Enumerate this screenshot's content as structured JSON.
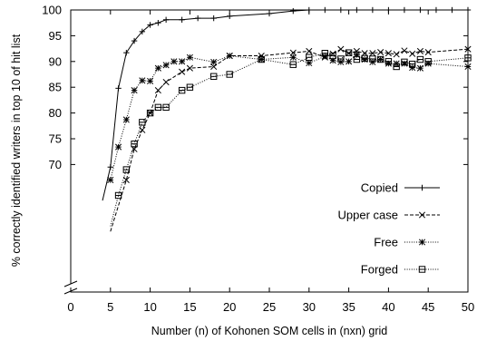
{
  "chart_data": {
    "type": "line",
    "title": "",
    "xlabel": "Number (n) of Kohonen SOM cells in (nxn) grid",
    "ylabel": "% correctly identified writers in top 10 of hit list",
    "xlim": [
      0,
      50
    ],
    "ylim": [
      65,
      100
    ],
    "y_axis_break": true,
    "x_ticks": [
      0,
      5,
      10,
      15,
      20,
      25,
      30,
      35,
      40,
      45,
      50
    ],
    "y_ticks": [
      70,
      75,
      80,
      85,
      90,
      95,
      100
    ],
    "grid": false,
    "legend_position": "bottom-right",
    "series": [
      {
        "name": "Copied",
        "line": "solid",
        "marker": "plus",
        "x": [
          4,
          5,
          6,
          7,
          8,
          9,
          10,
          11,
          12,
          14,
          16,
          18,
          20,
          25,
          28,
          30,
          32,
          34,
          36,
          38,
          40,
          42,
          44,
          46,
          48,
          50
        ],
        "y": [
          63,
          69.5,
          84.8,
          91.7,
          94,
          95.8,
          97.1,
          97.5,
          98.1,
          98.1,
          98.4,
          98.4,
          98.8,
          99.3,
          99.8,
          100,
          100,
          100,
          100,
          100,
          100,
          100,
          100,
          100,
          100,
          100
        ]
      },
      {
        "name": "Upper case",
        "line": "dashed",
        "marker": "x",
        "x": [
          5,
          6,
          7,
          8,
          9,
          10,
          11,
          12,
          14,
          15,
          18,
          20,
          24,
          28,
          30,
          32,
          33,
          34,
          35,
          36,
          37,
          38,
          39,
          40,
          41,
          42,
          43,
          44,
          45,
          50
        ],
        "y": [
          57,
          62,
          67,
          73,
          76.7,
          80,
          84.4,
          86,
          88,
          88.7,
          89,
          91.1,
          91.1,
          91.7,
          92,
          90.8,
          91.5,
          92.4,
          91.6,
          92,
          91.6,
          91.6,
          91.8,
          91.6,
          91.4,
          92.1,
          91.5,
          92,
          91.8,
          92.4
        ]
      },
      {
        "name": "Free",
        "line": "dotted",
        "marker": "star",
        "x": [
          5,
          6,
          7,
          8,
          9,
          10,
          11,
          12,
          13,
          14,
          15,
          18,
          20,
          24,
          28,
          30,
          32,
          33,
          34,
          35,
          36,
          37,
          38,
          39,
          40,
          41,
          42,
          43,
          44,
          45,
          50
        ],
        "y": [
          67,
          73.4,
          78.7,
          84.4,
          86.3,
          86.2,
          88.7,
          89.3,
          90,
          90,
          90.8,
          89.9,
          91.1,
          90.4,
          90.8,
          89.7,
          91,
          90.2,
          89.9,
          90,
          91.3,
          90.4,
          89.9,
          90.4,
          89.6,
          89.6,
          89.6,
          88.8,
          88.7,
          89.6,
          89
        ]
      },
      {
        "name": "Forged",
        "line": "dotted",
        "marker": "box",
        "x": [
          5,
          6,
          7,
          8,
          9,
          10,
          11,
          12,
          14,
          15,
          18,
          20,
          24,
          28,
          30,
          32,
          33,
          34,
          35,
          36,
          37,
          38,
          39,
          40,
          41,
          42,
          43,
          44,
          45,
          50
        ],
        "y": [
          58,
          64,
          69,
          74,
          78.2,
          80,
          81.1,
          81.1,
          84.4,
          85,
          87.1,
          87.5,
          90.4,
          89.4,
          90.8,
          91.6,
          91.1,
          90.5,
          91.7,
          90.4,
          90.6,
          90.5,
          90.4,
          90,
          89,
          89.9,
          89.5,
          90.4,
          90,
          90.7
        ]
      }
    ]
  }
}
